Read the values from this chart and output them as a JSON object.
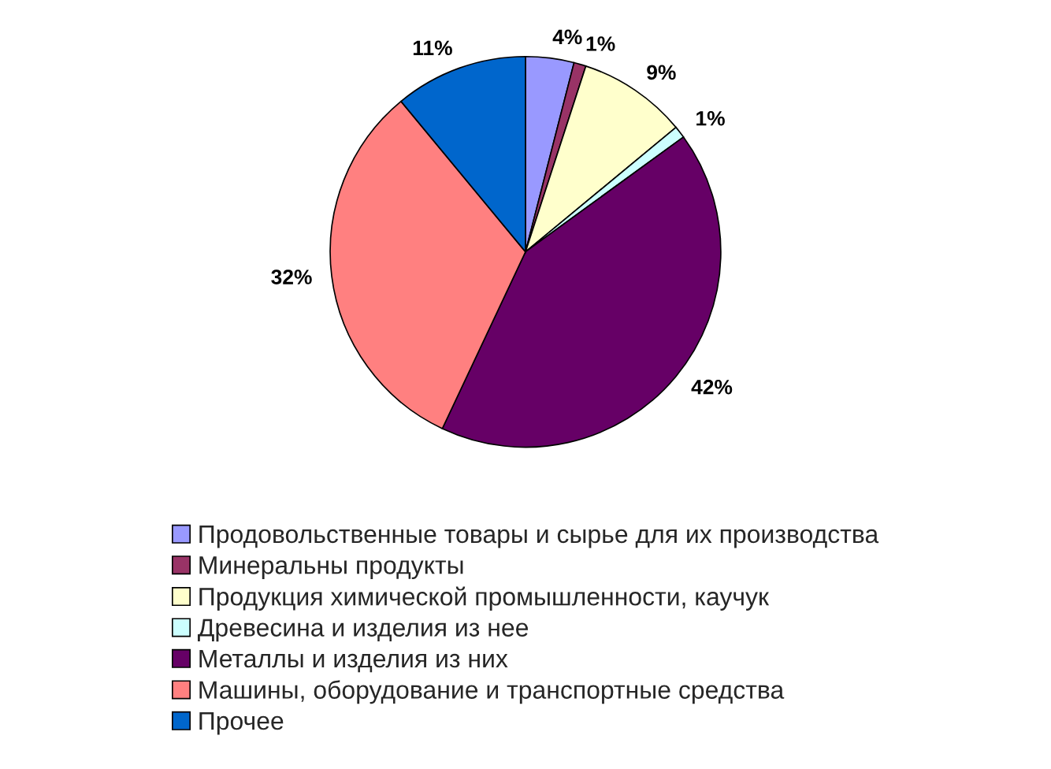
{
  "chart_data": {
    "type": "pie",
    "categories": [
      "Продовольственные товары и сырье для их производства",
      "Минеральны продукты",
      "Продукция химической промышленности, каучук",
      "Древесина и изделия из нее",
      "Металлы и изделия из них",
      "Машины, оборудование и транспортные средства",
      "Прочее"
    ],
    "values": [
      4,
      1,
      9,
      1,
      42,
      32,
      11
    ],
    "colors": [
      "#9999ff",
      "#993366",
      "#ffffcc",
      "#ccffff",
      "#660066",
      "#ff8080",
      "#0066cc"
    ],
    "value_labels": [
      "4%",
      "1%",
      "9%",
      "1%",
      "42%",
      "32%",
      "11%"
    ],
    "legend": "bottom"
  }
}
